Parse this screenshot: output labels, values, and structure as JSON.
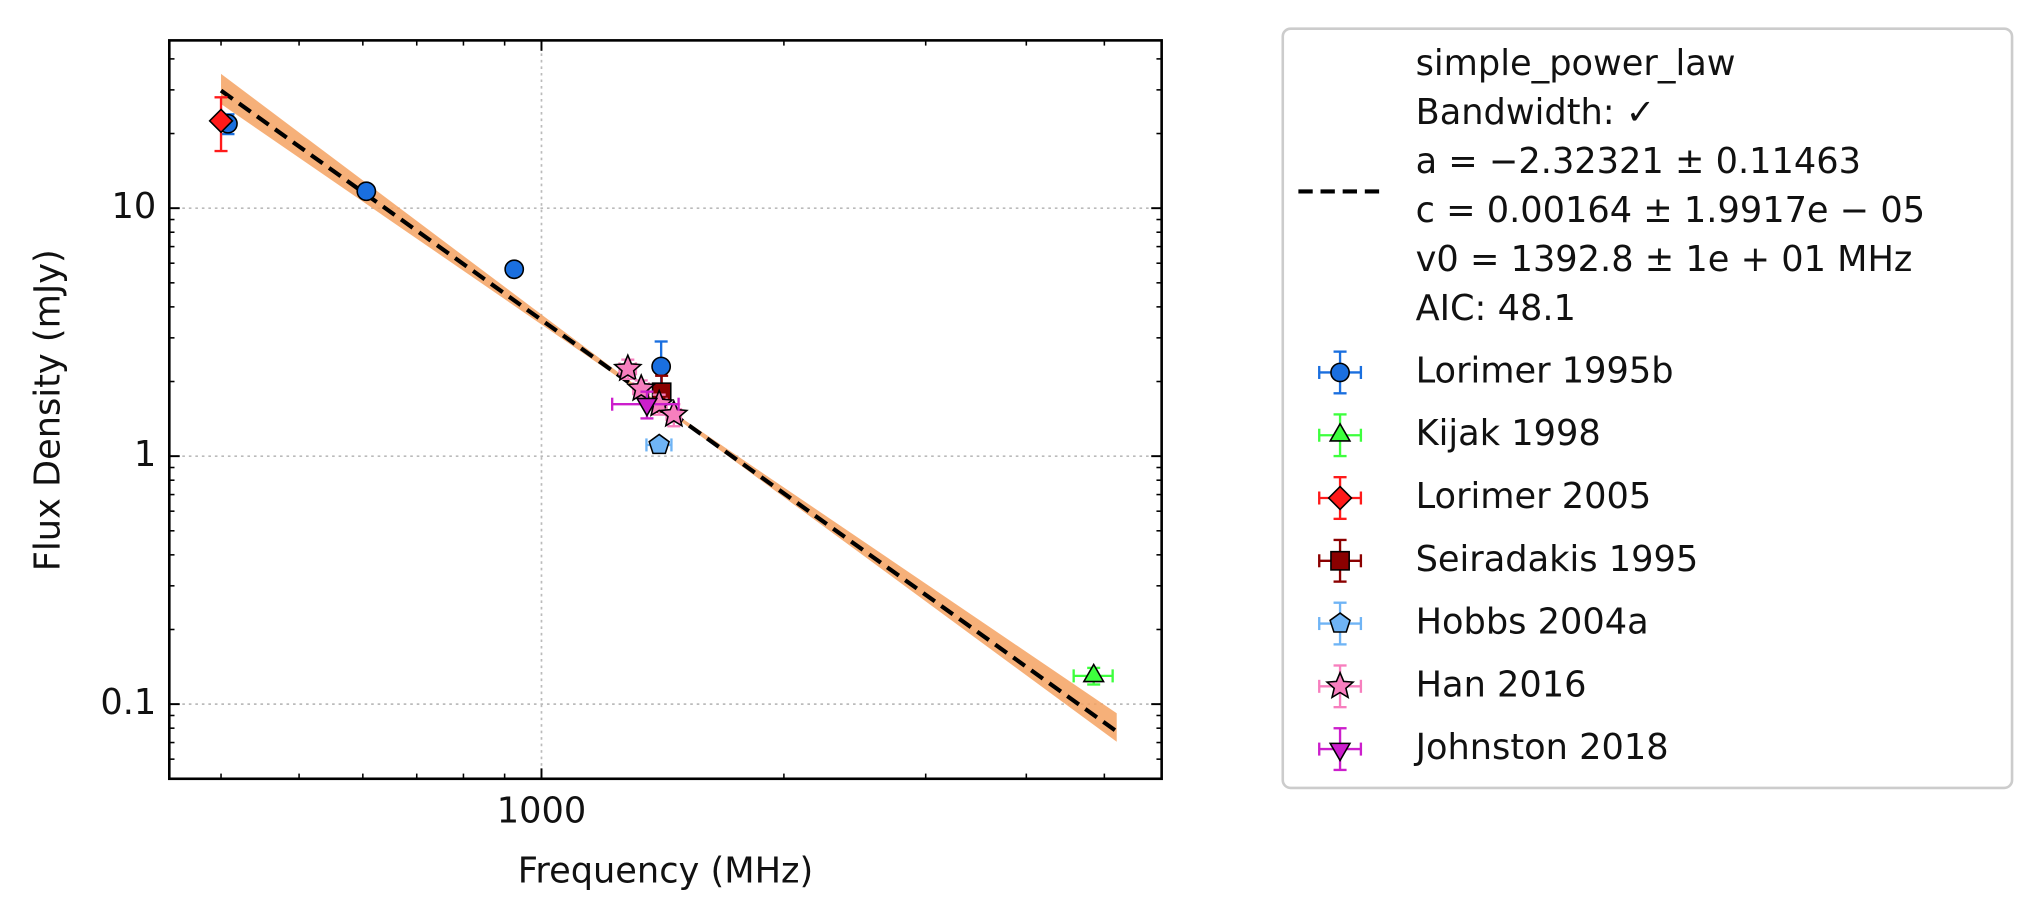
{
  "chart_data": {
    "type": "scatter",
    "x_label": "Frequency (MHz)",
    "y_label": "Flux Density (mJy)",
    "xlog": true,
    "ylog": true,
    "grid": true,
    "xlim": [
      345,
      5890
    ],
    "ylim": [
      0.05,
      47.5
    ],
    "xticks": [
      1000
    ],
    "yticks": [
      0.1,
      1,
      10
    ],
    "x_minor_ticks": [
      400,
      500,
      600,
      700,
      800,
      900,
      2000,
      3000,
      4000,
      5000
    ],
    "y_minor_ticks": [
      0.06,
      0.07,
      0.08,
      0.09,
      0.2,
      0.3,
      0.4,
      0.5,
      0.6,
      0.7,
      0.8,
      0.9,
      2,
      3,
      4,
      5,
      6,
      7,
      8,
      9,
      20,
      30,
      40
    ],
    "legend": "outside-right",
    "fit": {
      "label": [
        "simple_power_law",
        "Bandwidth: ✓",
        "a = −2.32321 ± 0.11463",
        "c = 0.00164 ± 1.9917e − 05",
        "v0 = 1392.8 ± 1e + 01 MHz",
        "AIC: 48.1"
      ],
      "color": "#000000",
      "band_color": "#f5a261",
      "x": [
        400,
        1392.8,
        5180
      ],
      "values": [
        29.8,
        1.64,
        0.0776
      ],
      "lower": [
        26.3,
        1.62,
        0.0705
      ],
      "upper": [
        34.8,
        1.66,
        0.0919
      ]
    },
    "series": [
      {
        "name": "Lorimer 1995b",
        "color": "#1a6fdf",
        "marker": "circle",
        "x": [
          408,
          606,
          925,
          1408
        ],
        "values": [
          21.9,
          11.7,
          5.67,
          2.3
        ],
        "yerr": [
          2.0,
          0.5,
          0.3,
          0.6
        ]
      },
      {
        "name": "Kijak 1998",
        "color": "#3dff3d",
        "marker": "triangle-up",
        "x": [
          4850
        ],
        "values": [
          0.13
        ],
        "xerr": [
          270
        ],
        "yerr": [
          0.01
        ]
      },
      {
        "name": "Lorimer 2005",
        "color": "#ff1a1a",
        "marker": "diamond",
        "x": [
          400
        ],
        "values": [
          22.5
        ],
        "yerr": [
          5.5
        ]
      },
      {
        "name": "Seiradakis 1995",
        "color": "#8b0000",
        "marker": "square",
        "x": [
          1410
        ],
        "values": [
          1.81
        ],
        "yerr": [
          0.3
        ]
      },
      {
        "name": "Hobbs 2004a",
        "color": "#6fb4f5",
        "marker": "pentagon",
        "x": [
          1400
        ],
        "values": [
          1.11
        ],
        "xerr": [
          50
        ],
        "yerr": [
          0.05
        ]
      },
      {
        "name": "Han 2016",
        "color": "#f77fbe",
        "marker": "star",
        "x": [
          1280,
          1330,
          1400,
          1460
        ],
        "values": [
          2.25,
          1.87,
          1.62,
          1.47
        ],
        "xerr": [
          30,
          30,
          30,
          30
        ],
        "yerr": [
          0.2,
          0.15,
          0.15,
          0.15
        ]
      },
      {
        "name": "Johnston 2018",
        "color": "#cc1ecc",
        "marker": "triangle-down",
        "x": [
          1352
        ],
        "values": [
          1.62
        ],
        "xerr": [
          128
        ],
        "yerr": [
          0.2
        ]
      }
    ]
  }
}
